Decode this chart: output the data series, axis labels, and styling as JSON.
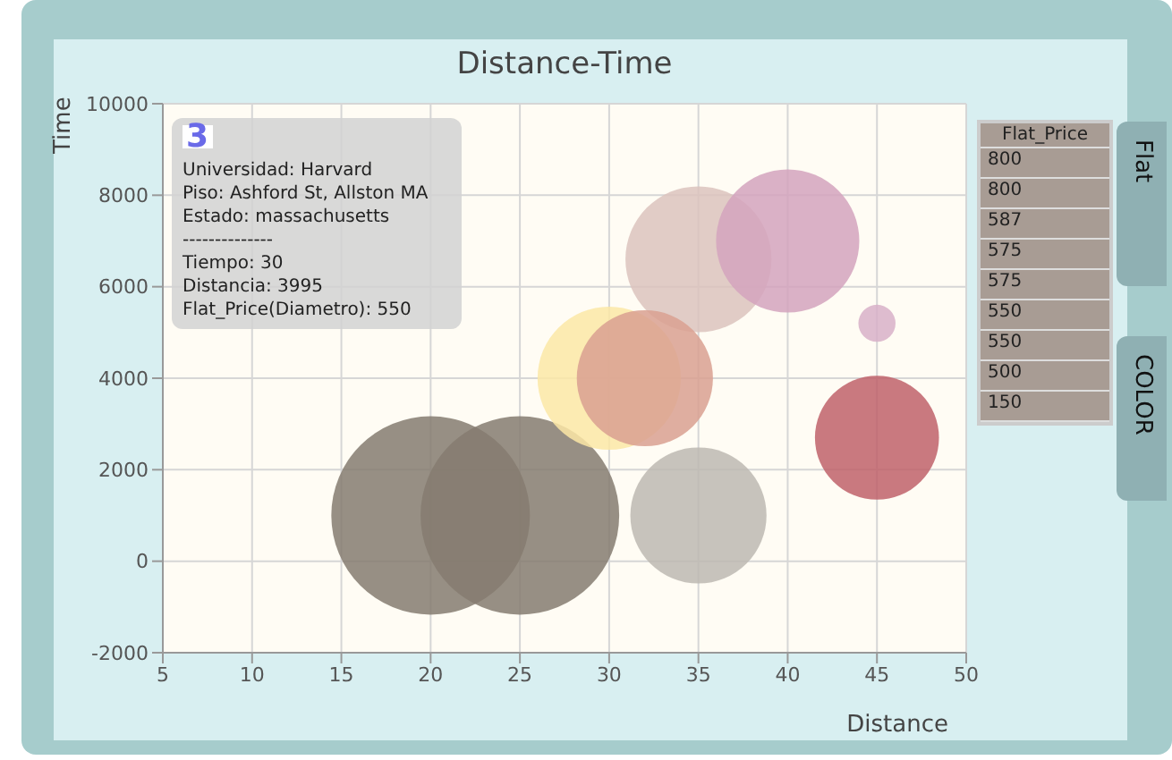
{
  "chart_data": {
    "type": "bubble",
    "title": "Distance-Time",
    "xlabel": "Distance",
    "ylabel": "Time",
    "x": [
      20,
      25,
      35,
      40,
      30,
      32,
      35,
      45,
      45
    ],
    "values": [
      1000,
      1000,
      6600,
      7000,
      4000,
      4000,
      1000,
      2700,
      5200
    ],
    "sizes": [
      1,
      1,
      0.54,
      0.52,
      0.52,
      0.47,
      0.47,
      0.39,
      0.035
    ],
    "colors": [
      "#857b70",
      "#857b70",
      "#dcc3bd",
      "#d4a3bd",
      "#fbe8a6",
      "#d9a090",
      "#bdb8b2",
      "#c0626a",
      "#d8b0c8"
    ],
    "xlim": [
      5,
      50
    ],
    "xticks": [
      5,
      10,
      15,
      20,
      25,
      30,
      35,
      40,
      45,
      50
    ],
    "ylim": [
      -2000,
      10000
    ],
    "yticks": [
      -2000,
      0,
      2000,
      4000,
      6000,
      8000,
      10000
    ],
    "grid": true,
    "annotations": [
      "3",
      "Universidad: Harvard",
      "Piso: Ashford St, Allston MA",
      "Estado: massachusetts",
      "--------------",
      "Tiempo: 30",
      "Distancia: 3995",
      "Flat_Price(Diametro): 550",
      "Flat",
      "COLOR",
      "Flat_Price",
      "800",
      "800",
      "587",
      "575",
      "575",
      "550",
      "550",
      "500",
      "150"
    ]
  }
}
